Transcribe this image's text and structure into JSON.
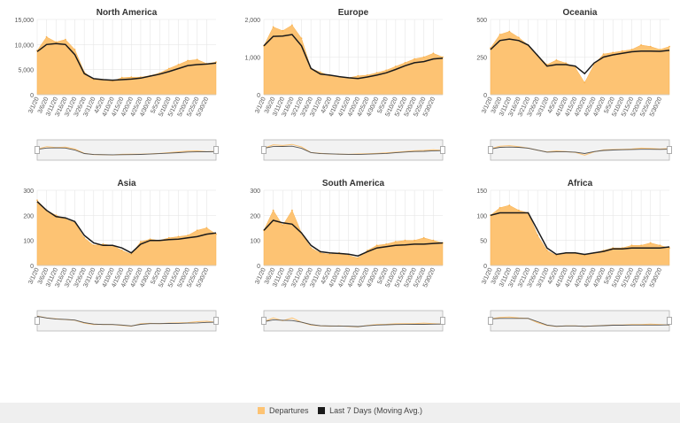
{
  "colors": {
    "area": "#fdc373",
    "area_stroke": "#f9b24f",
    "line": "#1a1a1a",
    "grid": "#e6e6e6"
  },
  "x_ticks": [
    "3/1/20",
    "3/6/20",
    "3/11/20",
    "3/16/20",
    "3/21/20",
    "3/26/20",
    "3/31/20",
    "4/5/20",
    "4/10/20",
    "4/15/20",
    "4/20/20",
    "4/25/20",
    "4/30/20",
    "5/5/20",
    "5/10/20",
    "5/15/20",
    "5/20/20",
    "5/25/20",
    "5/30/20"
  ],
  "legend": {
    "departures_label": "Departures",
    "avg_label": "Last 7 Days (Moving Avg.)"
  },
  "chart_data": [
    {
      "type": "area",
      "title": "North America",
      "ylim": [
        0,
        15000
      ],
      "yticks": [
        "0",
        "5,000",
        "10,000",
        "15,000"
      ],
      "x": [
        "3/1/20",
        "3/6/20",
        "3/11/20",
        "3/16/20",
        "3/21/20",
        "3/26/20",
        "3/31/20",
        "4/5/20",
        "4/10/20",
        "4/15/20",
        "4/20/20",
        "4/25/20",
        "4/30/20",
        "5/5/20",
        "5/10/20",
        "5/15/20",
        "5/20/20",
        "5/25/20",
        "5/30/20",
        "6/1/20"
      ],
      "series": [
        {
          "name": "Departures",
          "values": [
            8800,
            11500,
            10500,
            11000,
            9000,
            4500,
            3000,
            3000,
            2700,
            3400,
            3500,
            3500,
            3800,
            4300,
            5200,
            6000,
            6800,
            7000,
            6200,
            6500
          ]
        },
        {
          "name": "Last 7 Days (Moving Avg.)",
          "values": [
            8600,
            10000,
            10200,
            10000,
            8000,
            4200,
            3200,
            3000,
            2900,
            3000,
            3100,
            3300,
            3700,
            4100,
            4600,
            5200,
            5800,
            6000,
            6100,
            6300
          ]
        }
      ]
    },
    {
      "type": "area",
      "title": "Europe",
      "ylim": [
        0,
        2000
      ],
      "yticks": [
        "0",
        "1,000",
        "2,000"
      ],
      "x": [
        "3/1/20",
        "3/6/20",
        "3/11/20",
        "3/16/20",
        "3/21/20",
        "3/26/20",
        "3/31/20",
        "4/5/20",
        "4/10/20",
        "4/15/20",
        "4/20/20",
        "4/25/20",
        "4/30/20",
        "5/5/20",
        "5/10/20",
        "5/15/20",
        "5/20/20",
        "5/25/20",
        "5/30/20",
        "6/1/20"
      ],
      "series": [
        {
          "name": "Departures",
          "values": [
            1300,
            1800,
            1700,
            1850,
            1500,
            700,
            600,
            500,
            480,
            450,
            500,
            520,
            580,
            650,
            750,
            850,
            950,
            1000,
            1100,
            1000
          ]
        },
        {
          "name": "Last 7 Days (Moving Avg.)",
          "values": [
            1300,
            1550,
            1560,
            1600,
            1300,
            700,
            550,
            520,
            480,
            450,
            430,
            470,
            520,
            580,
            670,
            770,
            850,
            880,
            950,
            970
          ]
        }
      ]
    },
    {
      "type": "area",
      "title": "Oceania",
      "ylim": [
        0,
        500
      ],
      "yticks": [
        "0",
        "250",
        "500"
      ],
      "x": [
        "3/1/20",
        "3/6/20",
        "3/11/20",
        "3/16/20",
        "3/21/20",
        "3/26/20",
        "3/31/20",
        "4/5/20",
        "4/10/20",
        "4/15/20",
        "4/20/20",
        "4/25/20",
        "4/30/20",
        "5/5/20",
        "5/10/20",
        "5/15/20",
        "5/20/20",
        "5/25/20",
        "5/30/20",
        "6/1/20"
      ],
      "series": [
        {
          "name": "Departures",
          "values": [
            310,
            400,
            420,
            380,
            330,
            260,
            200,
            230,
            210,
            180,
            80,
            200,
            270,
            280,
            290,
            300,
            330,
            320,
            300,
            320
          ]
        },
        {
          "name": "Last 7 Days (Moving Avg.)",
          "values": [
            300,
            360,
            370,
            360,
            330,
            260,
            190,
            200,
            200,
            190,
            140,
            210,
            250,
            265,
            275,
            285,
            290,
            290,
            288,
            295
          ]
        }
      ]
    },
    {
      "type": "area",
      "title": "Asia",
      "ylim": [
        0,
        300
      ],
      "yticks": [
        "0",
        "100",
        "200",
        "300"
      ],
      "x": [
        "3/1/20",
        "3/6/20",
        "3/11/20",
        "3/16/20",
        "3/21/20",
        "3/26/20",
        "3/31/20",
        "4/5/20",
        "4/10/20",
        "4/15/20",
        "4/20/20",
        "4/25/20",
        "4/30/20",
        "5/5/20",
        "5/10/20",
        "5/15/20",
        "5/20/20",
        "5/25/20",
        "5/30/20",
        "6/1/20"
      ],
      "series": [
        {
          "name": "Departures",
          "values": [
            260,
            220,
            200,
            185,
            170,
            110,
            80,
            85,
            80,
            60,
            45,
            95,
            105,
            100,
            110,
            115,
            120,
            140,
            150,
            125
          ]
        },
        {
          "name": "Last 7 Days (Moving Avg.)",
          "values": [
            255,
            220,
            195,
            190,
            175,
            120,
            90,
            80,
            80,
            70,
            50,
            85,
            100,
            100,
            103,
            105,
            110,
            115,
            125,
            130
          ]
        }
      ]
    },
    {
      "type": "area",
      "title": "South America",
      "ylim": [
        0,
        300
      ],
      "yticks": [
        "0",
        "100",
        "200",
        "300"
      ],
      "x": [
        "3/1/20",
        "3/6/20",
        "3/11/20",
        "3/16/20",
        "3/21/20",
        "3/26/20",
        "3/31/20",
        "4/5/20",
        "4/10/20",
        "4/15/20",
        "4/20/20",
        "4/25/20",
        "4/30/20",
        "5/5/20",
        "5/10/20",
        "5/15/20",
        "5/20/20",
        "5/25/20",
        "5/30/20",
        "6/1/20"
      ],
      "series": [
        {
          "name": "Departures",
          "values": [
            140,
            220,
            160,
            220,
            130,
            70,
            50,
            45,
            50,
            40,
            30,
            60,
            80,
            85,
            95,
            100,
            100,
            110,
            100,
            90
          ]
        },
        {
          "name": "Last 7 Days (Moving Avg.)",
          "values": [
            140,
            180,
            170,
            165,
            130,
            80,
            55,
            50,
            48,
            45,
            38,
            55,
            70,
            75,
            80,
            82,
            85,
            85,
            88,
            90
          ]
        }
      ]
    },
    {
      "type": "area",
      "title": "Africa",
      "ylim": [
        0,
        150
      ],
      "yticks": [
        "0",
        "50",
        "100",
        "150"
      ],
      "x": [
        "3/1/20",
        "3/6/20",
        "3/11/20",
        "3/16/20",
        "3/21/20",
        "3/26/20",
        "3/31/20",
        "4/5/20",
        "4/10/20",
        "4/15/20",
        "4/20/20",
        "4/25/20",
        "4/30/20",
        "5/5/20",
        "5/10/20",
        "5/15/20",
        "5/20/20",
        "5/25/20",
        "5/30/20",
        "6/1/20"
      ],
      "series": [
        {
          "name": "Departures",
          "values": [
            100,
            115,
            120,
            110,
            105,
            60,
            30,
            20,
            25,
            25,
            20,
            25,
            30,
            35,
            35,
            40,
            40,
            45,
            40,
            35
          ]
        },
        {
          "name": "Last 7 Days (Moving Avg.)",
          "values": [
            100,
            105,
            105,
            105,
            105,
            70,
            35,
            22,
            25,
            25,
            22,
            25,
            28,
            33,
            33,
            35,
            35,
            35,
            35,
            37
          ]
        }
      ]
    }
  ]
}
